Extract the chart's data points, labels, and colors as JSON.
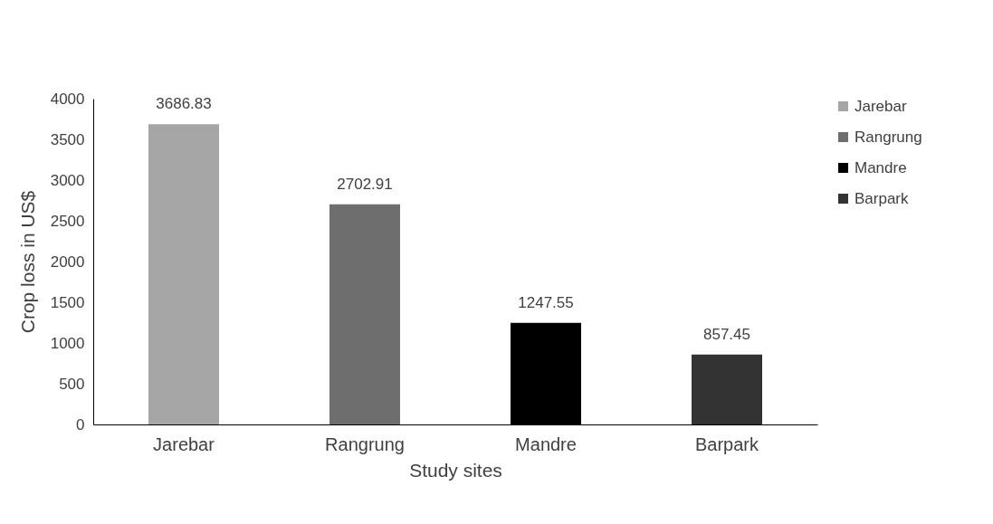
{
  "chart_data": {
    "type": "bar",
    "xlabel": "Study sites",
    "ylabel": "Crop loss in US$",
    "categories": [
      "Jarebar",
      "Rangrung",
      "Mandre",
      "Barpark"
    ],
    "series": [
      {
        "name": "Jarebar",
        "color": "#a6a6a6",
        "values": [
          3686.83,
          null,
          null,
          null
        ]
      },
      {
        "name": "Rangrung",
        "color": "#6e6e6e",
        "values": [
          null,
          2702.91,
          null,
          null
        ]
      },
      {
        "name": "Mandre",
        "color": "#000000",
        "values": [
          null,
          null,
          1247.55,
          null
        ]
      },
      {
        "name": "Barpark",
        "color": "#333333",
        "values": [
          null,
          null,
          null,
          857.45
        ]
      }
    ],
    "ylim": [
      0,
      4000
    ],
    "yticks": [
      0,
      500,
      1000,
      1500,
      2000,
      2500,
      3000,
      3500,
      4000
    ],
    "data_labels": true,
    "grid": false,
    "legend": "top right"
  }
}
